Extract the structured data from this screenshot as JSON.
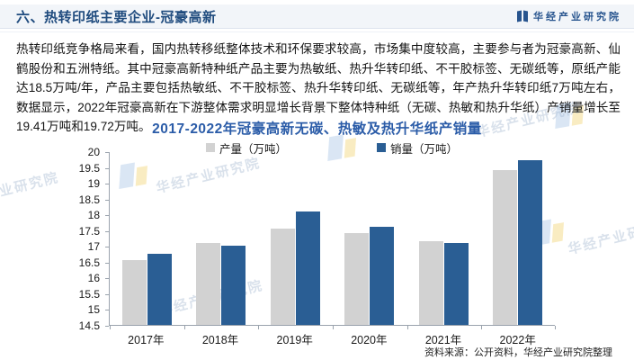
{
  "header": {
    "title": "六、热转印纸主要企业-冠豪高新",
    "brand": "华经产业研究院"
  },
  "body_text": "热转印纸竞争格局来看，国内热转移纸整体技术和环保要求较高，市场集中度较高，主要参与者为冠豪高新、仙鹤股份和五洲特纸。其中冠豪高新特种纸产品主要为热敏纸、热升华转印纸、不干胶标签、无碳纸等，原纸产能达18.5万吨/年，产品主要包括热敏纸、不干胶标签、热升华转印纸、无碳纸等，年产热升华转印纸7万吨左右，数据显示，2022年冠豪高新在下游整体需求明显增长背景下整体特种纸（无碳、热敏和热升华纸）产销量增长至19.41万吨和19.72万吨。",
  "chart_data": {
    "type": "bar",
    "title": "2017-2022年冠豪高新无碳、热敏及热升华纸产销量",
    "categories": [
      "2017年",
      "2018年",
      "2019年",
      "2020年",
      "2021年",
      "2022年"
    ],
    "series": [
      {
        "name": "产量（万吨）",
        "color": "#d2d2d2",
        "values": [
          16.55,
          17.1,
          17.55,
          17.4,
          17.15,
          19.41
        ]
      },
      {
        "name": "销量（万吨）",
        "color": "#2a5e94",
        "values": [
          16.75,
          17.0,
          18.1,
          17.6,
          17.1,
          19.72
        ]
      }
    ],
    "ylim": [
      14.5,
      20
    ],
    "ytick_step": 0.5,
    "grid": false,
    "legend_position": "top"
  },
  "source_note": "资料来源：公开资料，华经产业研究院整理",
  "watermark": {
    "text": "华经产业研究院"
  },
  "colors": {
    "header_title": "#1f4b7e",
    "chart_title": "#2b5ca8",
    "bar_production": "#d2d2d2",
    "bar_sales": "#2a5e94",
    "axis": "#9aa3ad"
  }
}
